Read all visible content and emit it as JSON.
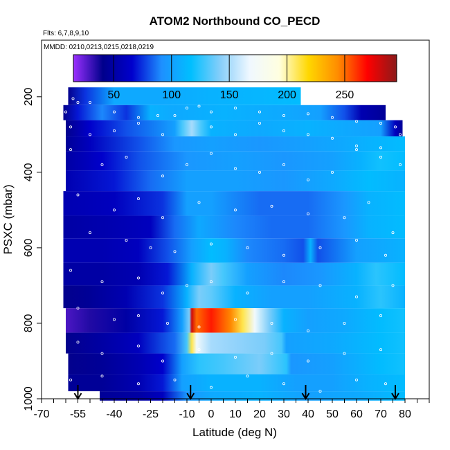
{
  "chart_data": {
    "type": "heatmap",
    "title": "ATOM2 Northbound CO_PECD",
    "flights_note": "Flts: 6,7,8,9,10",
    "dates_note": "MMDD: 0210,0213,0215,0218,0219",
    "xlabel": "Latitude (deg N)",
    "ylabel": "PSXC (mbar)",
    "xlim": [
      -70,
      90
    ],
    "ylim": [
      1000,
      50
    ],
    "x_ticks": [
      -70,
      -55,
      -40,
      -25,
      -10,
      0,
      10,
      20,
      30,
      40,
      50,
      60,
      70,
      80
    ],
    "x_tick_labels": [
      "-70",
      "-55",
      "-40",
      "-25",
      "-10",
      "0",
      "10",
      "20",
      "30",
      "40",
      "50",
      "60",
      "70",
      "80"
    ],
    "y_ticks": [
      200,
      400,
      600,
      800,
      1000
    ],
    "y_tick_labels": [
      "200",
      "400",
      "600",
      "800",
      "1000"
    ],
    "colorbar": {
      "range": [
        15,
        295
      ],
      "ticks": [
        50,
        100,
        150,
        200,
        250
      ],
      "tick_labels": [
        "50",
        "100",
        "150",
        "200",
        "250"
      ],
      "colors": [
        "#9b30ff",
        "#00008b",
        "#0000cd",
        "#1e90ff",
        "#00bfff",
        "#87cefa",
        "#f0f8ff",
        "#ffffe0",
        "#ffd700",
        "#ff8c00",
        "#ff0000",
        "#8b1a1a"
      ]
    },
    "arrow_latitudes": [
      -55,
      -8.5,
      39,
      76
    ],
    "layers": [
      {
        "p_top": 175,
        "p_bot": 222,
        "x_start": -59,
        "x_end": 37,
        "knots": [
          [
            -59,
            40
          ],
          [
            -52,
            75
          ],
          [
            -40,
            105
          ],
          [
            -20,
            105
          ],
          [
            0,
            110
          ],
          [
            20,
            112
          ],
          [
            37,
            115
          ]
        ]
      },
      {
        "p_top": 222,
        "p_bot": 262,
        "x_start": -61,
        "x_end": 72,
        "knots": [
          [
            -61,
            40
          ],
          [
            -55,
            70
          ],
          [
            -45,
            90
          ],
          [
            -35,
            75
          ],
          [
            -25,
            110
          ],
          [
            -15,
            105
          ],
          [
            5,
            110
          ],
          [
            30,
            105
          ],
          [
            45,
            100
          ],
          [
            55,
            80
          ],
          [
            62,
            55
          ],
          [
            72,
            45
          ]
        ]
      },
      {
        "p_top": 262,
        "p_bot": 305,
        "x_start": -60,
        "x_end": 79,
        "knots": [
          [
            -60,
            40
          ],
          [
            -50,
            65
          ],
          [
            -35,
            80
          ],
          [
            -15,
            100
          ],
          [
            -12,
            130
          ],
          [
            -8,
            150
          ],
          [
            -4,
            130
          ],
          [
            0,
            110
          ],
          [
            20,
            105
          ],
          [
            40,
            110
          ],
          [
            55,
            105
          ],
          [
            70,
            100
          ],
          [
            76,
            60
          ],
          [
            79,
            45
          ]
        ]
      },
      {
        "p_top": 305,
        "p_bot": 345,
        "x_start": -60,
        "x_end": 80,
        "knots": [
          [
            -60,
            45
          ],
          [
            -50,
            60
          ],
          [
            -30,
            80
          ],
          [
            -15,
            95
          ],
          [
            0,
            100
          ],
          [
            20,
            95
          ],
          [
            40,
            100
          ],
          [
            55,
            105
          ],
          [
            65,
            110
          ],
          [
            80,
            115
          ]
        ]
      },
      {
        "p_top": 345,
        "p_bot": 395,
        "x_start": -60,
        "x_end": 80,
        "knots": [
          [
            -60,
            50
          ],
          [
            -45,
            65
          ],
          [
            -30,
            80
          ],
          [
            -10,
            95
          ],
          [
            10,
            100
          ],
          [
            30,
            95
          ],
          [
            50,
            100
          ],
          [
            62,
            110
          ],
          [
            70,
            120
          ],
          [
            80,
            115
          ]
        ]
      },
      {
        "p_top": 395,
        "p_bot": 450,
        "x_start": -60,
        "x_end": 80,
        "knots": [
          [
            -60,
            55
          ],
          [
            -40,
            70
          ],
          [
            -25,
            85
          ],
          [
            -10,
            100
          ],
          [
            10,
            100
          ],
          [
            30,
            95
          ],
          [
            50,
            105
          ],
          [
            65,
            115
          ],
          [
            80,
            110
          ]
        ]
      },
      {
        "p_top": 450,
        "p_bot": 515,
        "x_start": -61,
        "x_end": 80,
        "knots": [
          [
            -61,
            55
          ],
          [
            -40,
            60
          ],
          [
            -20,
            75
          ],
          [
            -10,
            100
          ],
          [
            0,
            100
          ],
          [
            20,
            85
          ],
          [
            40,
            85
          ],
          [
            55,
            95
          ],
          [
            65,
            110
          ],
          [
            80,
            115
          ]
        ]
      },
      {
        "p_top": 515,
        "p_bot": 575,
        "x_start": -61,
        "x_end": 80,
        "knots": [
          [
            -61,
            50
          ],
          [
            -40,
            55
          ],
          [
            -25,
            60
          ],
          [
            -15,
            85
          ],
          [
            -5,
            105
          ],
          [
            10,
            90
          ],
          [
            25,
            85
          ],
          [
            40,
            85
          ],
          [
            55,
            95
          ],
          [
            65,
            110
          ],
          [
            80,
            115
          ]
        ]
      },
      {
        "p_top": 575,
        "p_bot": 640,
        "x_start": -61,
        "x_end": 80,
        "knots": [
          [
            -61,
            55
          ],
          [
            -45,
            55
          ],
          [
            -30,
            60
          ],
          [
            -18,
            80
          ],
          [
            -8,
            100
          ],
          [
            0,
            115
          ],
          [
            6,
            110
          ],
          [
            15,
            90
          ],
          [
            30,
            85
          ],
          [
            38,
            80
          ],
          [
            41,
            110
          ],
          [
            44,
            80
          ],
          [
            60,
            100
          ],
          [
            80,
            110
          ]
        ]
      },
      {
        "p_top": 640,
        "p_bot": 700,
        "x_start": -61,
        "x_end": 80,
        "knots": [
          [
            -61,
            50
          ],
          [
            -45,
            50
          ],
          [
            -30,
            55
          ],
          [
            -18,
            70
          ],
          [
            -8,
            110
          ],
          [
            0,
            140
          ],
          [
            5,
            130
          ],
          [
            15,
            100
          ],
          [
            30,
            90
          ],
          [
            45,
            95
          ],
          [
            60,
            110
          ],
          [
            68,
            125
          ],
          [
            80,
            115
          ]
        ]
      },
      {
        "p_top": 700,
        "p_bot": 760,
        "x_start": -61,
        "x_end": 80,
        "knots": [
          [
            -61,
            40
          ],
          [
            -50,
            45
          ],
          [
            -35,
            55
          ],
          [
            -20,
            75
          ],
          [
            -10,
            110
          ],
          [
            -5,
            140
          ],
          [
            0,
            135
          ],
          [
            10,
            110
          ],
          [
            25,
            100
          ],
          [
            40,
            100
          ],
          [
            60,
            110
          ],
          [
            70,
            125
          ],
          [
            80,
            110
          ]
        ]
      },
      {
        "p_top": 760,
        "p_bot": 825,
        "x_start": -60,
        "x_end": 80,
        "knots": [
          [
            -60,
            28
          ],
          [
            -50,
            35
          ],
          [
            -35,
            50
          ],
          [
            -20,
            70
          ],
          [
            -12,
            100
          ],
          [
            -9,
            140
          ],
          [
            -8,
            280
          ],
          [
            -6,
            250
          ],
          [
            0,
            265
          ],
          [
            8,
            245
          ],
          [
            13,
            210
          ],
          [
            18,
            170
          ],
          [
            24,
            140
          ],
          [
            30,
            110
          ],
          [
            40,
            100
          ],
          [
            55,
            105
          ],
          [
            70,
            115
          ],
          [
            80,
            120
          ]
        ]
      },
      {
        "p_top": 825,
        "p_bot": 880,
        "x_start": -60,
        "x_end": 80,
        "knots": [
          [
            -60,
            40
          ],
          [
            -45,
            50
          ],
          [
            -30,
            60
          ],
          [
            -15,
            85
          ],
          [
            -10,
            130
          ],
          [
            -8,
            210
          ],
          [
            -6,
            170
          ],
          [
            0,
            150
          ],
          [
            10,
            145
          ],
          [
            22,
            140
          ],
          [
            29,
            130
          ],
          [
            31,
            100
          ],
          [
            50,
            105
          ],
          [
            70,
            115
          ],
          [
            80,
            120
          ]
        ]
      },
      {
        "p_top": 880,
        "p_bot": 935,
        "x_start": -59,
        "x_end": 80,
        "knots": [
          [
            -59,
            40
          ],
          [
            -45,
            45
          ],
          [
            -30,
            55
          ],
          [
            -20,
            65
          ],
          [
            -12,
            100
          ],
          [
            -5,
            125
          ],
          [
            5,
            130
          ],
          [
            20,
            140
          ],
          [
            31,
            125
          ],
          [
            33,
            95
          ],
          [
            50,
            100
          ],
          [
            70,
            115
          ],
          [
            80,
            120
          ]
        ]
      },
      {
        "p_top": 935,
        "p_bot": 980,
        "x_start": -59,
        "x_end": 80,
        "knots": [
          [
            -59,
            45
          ],
          [
            -45,
            45
          ],
          [
            -30,
            55
          ],
          [
            -20,
            70
          ],
          [
            -12,
            100
          ],
          [
            0,
            110
          ],
          [
            20,
            110
          ],
          [
            35,
            100
          ],
          [
            50,
            100
          ],
          [
            65,
            110
          ],
          [
            80,
            115
          ]
        ]
      },
      {
        "p_top": 980,
        "p_bot": 1005,
        "x_start": -46,
        "x_end": 80,
        "knots": [
          [
            -46,
            45
          ],
          [
            -30,
            50
          ],
          [
            -20,
            60
          ],
          [
            -10,
            95
          ],
          [
            0,
            105
          ],
          [
            20,
            110
          ],
          [
            40,
            100
          ],
          [
            60,
            105
          ],
          [
            80,
            115
          ]
        ]
      }
    ],
    "points": [
      [
        -62,
        185
      ],
      [
        -57,
        205
      ],
      [
        -55,
        215
      ],
      [
        -60,
        240
      ],
      [
        -50,
        215
      ],
      [
        -40,
        240
      ],
      [
        -30,
        255
      ],
      [
        -22,
        250
      ],
      [
        -15,
        250
      ],
      [
        -10,
        230
      ],
      [
        -5,
        225
      ],
      [
        0,
        240
      ],
      [
        10,
        230
      ],
      [
        20,
        240
      ],
      [
        30,
        250
      ],
      [
        40,
        245
      ],
      [
        50,
        255
      ],
      [
        60,
        265
      ],
      [
        70,
        270
      ],
      [
        76,
        280
      ],
      [
        -58,
        280
      ],
      [
        -50,
        300
      ],
      [
        -40,
        290
      ],
      [
        -30,
        270
      ],
      [
        -20,
        300
      ],
      [
        0,
        280
      ],
      [
        10,
        300
      ],
      [
        20,
        270
      ],
      [
        30,
        290
      ],
      [
        40,
        300
      ],
      [
        50,
        310
      ],
      [
        60,
        330
      ],
      [
        70,
        335
      ],
      [
        78,
        300
      ],
      [
        -58,
        340
      ],
      [
        -45,
        380
      ],
      [
        -35,
        360
      ],
      [
        -20,
        410
      ],
      [
        -10,
        380
      ],
      [
        0,
        350
      ],
      [
        10,
        390
      ],
      [
        20,
        400
      ],
      [
        30,
        380
      ],
      [
        40,
        420
      ],
      [
        50,
        400
      ],
      [
        60,
        340
      ],
      [
        70,
        360
      ],
      [
        78,
        380
      ],
      [
        -55,
        460
      ],
      [
        -40,
        500
      ],
      [
        -30,
        470
      ],
      [
        -20,
        520
      ],
      [
        -5,
        480
      ],
      [
        10,
        500
      ],
      [
        25,
        490
      ],
      [
        40,
        510
      ],
      [
        55,
        520
      ],
      [
        65,
        480
      ],
      [
        75,
        560
      ],
      [
        -50,
        560
      ],
      [
        -35,
        580
      ],
      [
        -25,
        600
      ],
      [
        -15,
        610
      ],
      [
        0,
        590
      ],
      [
        15,
        600
      ],
      [
        30,
        620
      ],
      [
        45,
        600
      ],
      [
        60,
        580
      ],
      [
        72,
        620
      ],
      [
        -58,
        660
      ],
      [
        -45,
        690
      ],
      [
        -30,
        680
      ],
      [
        -20,
        720
      ],
      [
        -10,
        700
      ],
      [
        0,
        690
      ],
      [
        15,
        720
      ],
      [
        30,
        690
      ],
      [
        45,
        700
      ],
      [
        60,
        730
      ],
      [
        75,
        700
      ],
      [
        -55,
        760
      ],
      [
        -40,
        790
      ],
      [
        -30,
        780
      ],
      [
        -18,
        800
      ],
      [
        -5,
        810
      ],
      [
        10,
        790
      ],
      [
        25,
        800
      ],
      [
        40,
        820
      ],
      [
        55,
        800
      ],
      [
        70,
        780
      ],
      [
        -55,
        850
      ],
      [
        -45,
        880
      ],
      [
        -30,
        860
      ],
      [
        -20,
        900
      ],
      [
        -5,
        870
      ],
      [
        10,
        890
      ],
      [
        25,
        880
      ],
      [
        40,
        900
      ],
      [
        55,
        880
      ],
      [
        70,
        870
      ],
      [
        -58,
        950
      ],
      [
        -45,
        940
      ],
      [
        -30,
        960
      ],
      [
        -15,
        950
      ],
      [
        0,
        970
      ],
      [
        15,
        940
      ],
      [
        30,
        960
      ],
      [
        45,
        980
      ],
      [
        60,
        950
      ],
      [
        72,
        960
      ]
    ]
  }
}
